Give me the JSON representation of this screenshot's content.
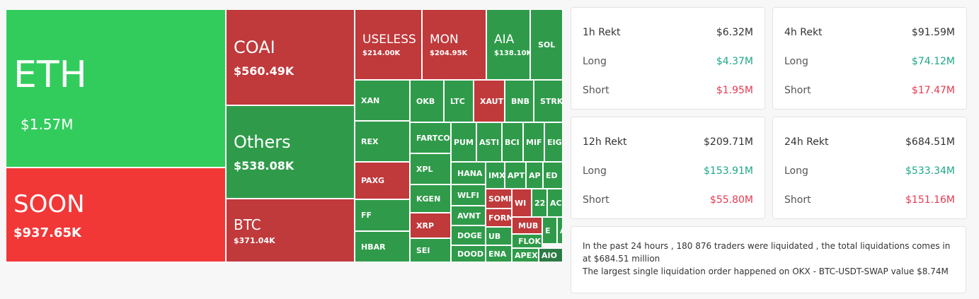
{
  "treemap": {
    "tiles": [
      {
        "label": "ETH",
        "value": "$1.57M"
      },
      {
        "label": "SOON",
        "value": "$937.65K"
      },
      {
        "label": "COAI",
        "value": "$560.49K"
      },
      {
        "label": "Others",
        "value": "$538.08K"
      },
      {
        "label": "BTC",
        "value": "$371.04K"
      },
      {
        "label": "USELESS",
        "value": "$214.00K"
      },
      {
        "label": "MON",
        "value": "$204.95K"
      },
      {
        "label": "AIA",
        "value": "$138.10K"
      },
      {
        "label": "SOL"
      },
      {
        "label": "XAN"
      },
      {
        "label": "OKB"
      },
      {
        "label": "LTC"
      },
      {
        "label": "XAUT"
      },
      {
        "label": "BNB"
      },
      {
        "label": "STRK"
      },
      {
        "label": "REX"
      },
      {
        "label": "FARTCOI"
      },
      {
        "label": "PUM"
      },
      {
        "label": "ASTI"
      },
      {
        "label": "BCI"
      },
      {
        "label": "MIF"
      },
      {
        "label": "EIG"
      },
      {
        "label": "PAXG"
      },
      {
        "label": "XPL"
      },
      {
        "label": "KGEN"
      },
      {
        "label": "HANA"
      },
      {
        "label": "IMX"
      },
      {
        "label": "APT"
      },
      {
        "label": "AP"
      },
      {
        "label": "ED"
      },
      {
        "label": "FF"
      },
      {
        "label": "XRP"
      },
      {
        "label": "SEI"
      },
      {
        "label": "WLFI"
      },
      {
        "label": "AVNT"
      },
      {
        "label": "DOGE"
      },
      {
        "label": "DOOD"
      },
      {
        "label": "SOMI"
      },
      {
        "label": "WI"
      },
      {
        "label": "22"
      },
      {
        "label": "AC"
      },
      {
        "label": "FORM"
      },
      {
        "label": "MUB"
      },
      {
        "label": "E"
      },
      {
        "label": "A"
      },
      {
        "label": "UB"
      },
      {
        "label": "FLOK"
      },
      {
        "label": "ENA"
      },
      {
        "label": "APEX"
      },
      {
        "label": "AIO"
      },
      {
        "label": "HBAR"
      }
    ]
  },
  "cards": [
    {
      "title": "1h Rekt",
      "total": "$6.32M",
      "rows": [
        {
          "label": "Long",
          "value": "$4.37M"
        },
        {
          "label": "Short",
          "value": "$1.95M"
        }
      ]
    },
    {
      "title": "4h Rekt",
      "total": "$91.59M",
      "rows": [
        {
          "label": "Long",
          "value": "$74.12M"
        },
        {
          "label": "Short",
          "value": "$17.47M"
        }
      ]
    },
    {
      "title": "12h Rekt",
      "total": "$209.71M",
      "rows": [
        {
          "label": "Long",
          "value": "$153.91M"
        },
        {
          "label": "Short",
          "value": "$55.80M"
        }
      ]
    },
    {
      "title": "24h Rekt",
      "total": "$684.51M",
      "rows": [
        {
          "label": "Long",
          "value": "$533.34M"
        },
        {
          "label": "Short",
          "value": "$151.16M"
        }
      ]
    }
  ],
  "summary": {
    "lines": [
      "In the past 24 hours , 180 876 traders were liquidated , the total liquidations comes in at $684.51 million",
      "The largest single liquidation order happened on OKX - BTC-USDT-SWAP value $8.74M"
    ]
  }
}
